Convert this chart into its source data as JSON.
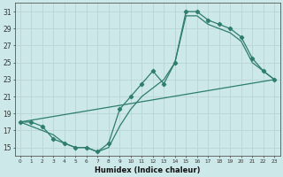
{
  "color": "#2e7d6e",
  "bg_color": "#cce8e8",
  "grid_color": "#b8d4d4",
  "xlabel": "Humidex (Indice chaleur)",
  "ylim": [
    14.0,
    32.0
  ],
  "xlim": [
    -0.5,
    23.5
  ],
  "yticks": [
    15,
    17,
    19,
    21,
    23,
    25,
    27,
    29,
    31
  ],
  "xticks": [
    0,
    1,
    2,
    3,
    4,
    5,
    6,
    7,
    8,
    9,
    10,
    11,
    12,
    13,
    14,
    15,
    16,
    17,
    18,
    19,
    20,
    21,
    22,
    23
  ],
  "line1_x": [
    0,
    23
  ],
  "line1_y": [
    18.0,
    23.0
  ],
  "line2_x": [
    0,
    1,
    2,
    3,
    4,
    5,
    6,
    7,
    8,
    9,
    10,
    11,
    12,
    13,
    14,
    15,
    16,
    17,
    18,
    19,
    20,
    21,
    22,
    23
  ],
  "line2_y": [
    18.0,
    18.0,
    17.5,
    16.0,
    15.5,
    15.0,
    15.0,
    14.5,
    15.5,
    19.5,
    21.0,
    22.5,
    24.0,
    22.5,
    25.0,
    31.0,
    31.0,
    30.0,
    29.5,
    29.0,
    28.0,
    25.5,
    24.0,
    23.0
  ],
  "line3_x": [
    0,
    1,
    2,
    3,
    4,
    5,
    6,
    7,
    8,
    9,
    10,
    11,
    12,
    13,
    14,
    15,
    16,
    17,
    18,
    19,
    20,
    21,
    22,
    23
  ],
  "line3_y": [
    18.0,
    17.5,
    17.0,
    16.5,
    15.5,
    15.0,
    15.0,
    14.5,
    15.0,
    17.5,
    19.5,
    21.0,
    22.0,
    23.0,
    25.0,
    30.5,
    30.5,
    29.5,
    29.0,
    28.5,
    27.5,
    25.0,
    24.0,
    23.0
  ]
}
